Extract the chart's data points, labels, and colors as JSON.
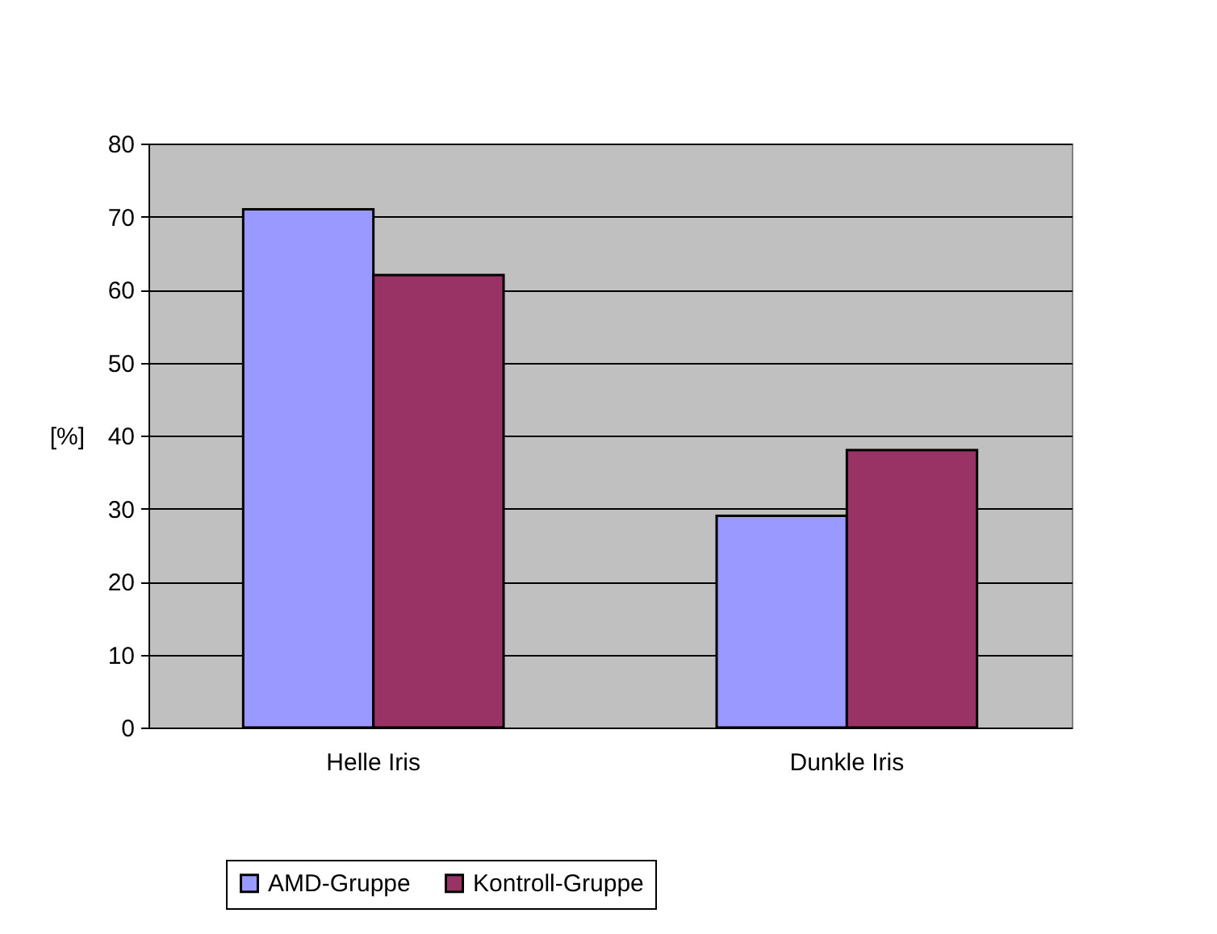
{
  "chart_data": {
    "type": "bar",
    "ylabel": "[%]",
    "categories": [
      "Helle Iris",
      "Dunkle Iris"
    ],
    "series": [
      {
        "name": "AMD-Gruppe",
        "color": "#9999ff",
        "values": [
          71,
          29
        ]
      },
      {
        "name": "Kontroll-Gruppe",
        "color": "#993366",
        "values": [
          62,
          38
        ]
      }
    ],
    "ylim": [
      0,
      80
    ],
    "yticks": [
      0,
      10,
      20,
      30,
      40,
      50,
      60,
      70,
      80
    ],
    "grid": "y",
    "legend": "bottom"
  }
}
